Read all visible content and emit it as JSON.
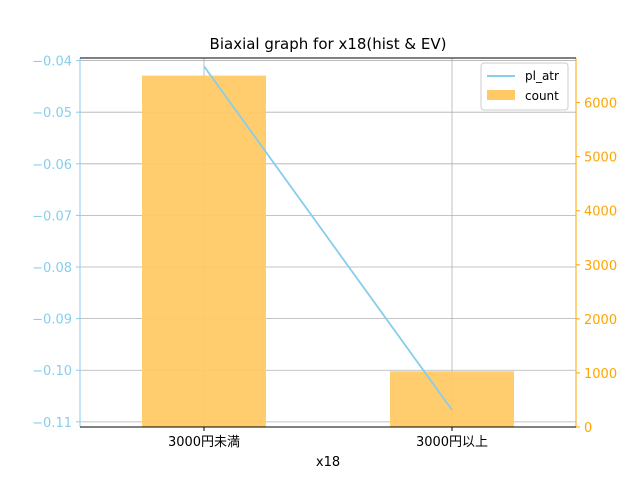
{
  "chart_data": {
    "type": "bar",
    "title": "Biaxial graph for x18(hist & EV)",
    "xlabel": "x18",
    "categories": [
      "3000円未満",
      "3000円以上"
    ],
    "series": [
      {
        "name": "count",
        "type": "bar",
        "axis": "right",
        "values": [
          6500,
          1030
        ],
        "color": "#ffc966"
      },
      {
        "name": "pl_atr",
        "type": "line",
        "axis": "left",
        "values": [
          -0.0411,
          -0.1077
        ],
        "color": "#87ceeb"
      }
    ],
    "left_axis": {
      "ylim": [
        -0.111,
        -0.0395
      ],
      "ticks": [
        "-0.04",
        "-0.05",
        "-0.06",
        "-0.07",
        "-0.08",
        "-0.09",
        "-0.10",
        "-0.11"
      ],
      "tick_values": [
        -0.04,
        -0.05,
        -0.06,
        -0.07,
        -0.08,
        -0.09,
        -0.1,
        -0.11
      ],
      "color": "#87ceeb"
    },
    "right_axis": {
      "ylim": [
        0,
        6825
      ],
      "ticks": [
        "0",
        "1000",
        "2000",
        "3000",
        "4000",
        "5000",
        "6000"
      ],
      "tick_values": [
        0,
        1000,
        2000,
        3000,
        4000,
        5000,
        6000
      ],
      "color": "#ffa500"
    },
    "grid": true,
    "legend": "upper right"
  }
}
